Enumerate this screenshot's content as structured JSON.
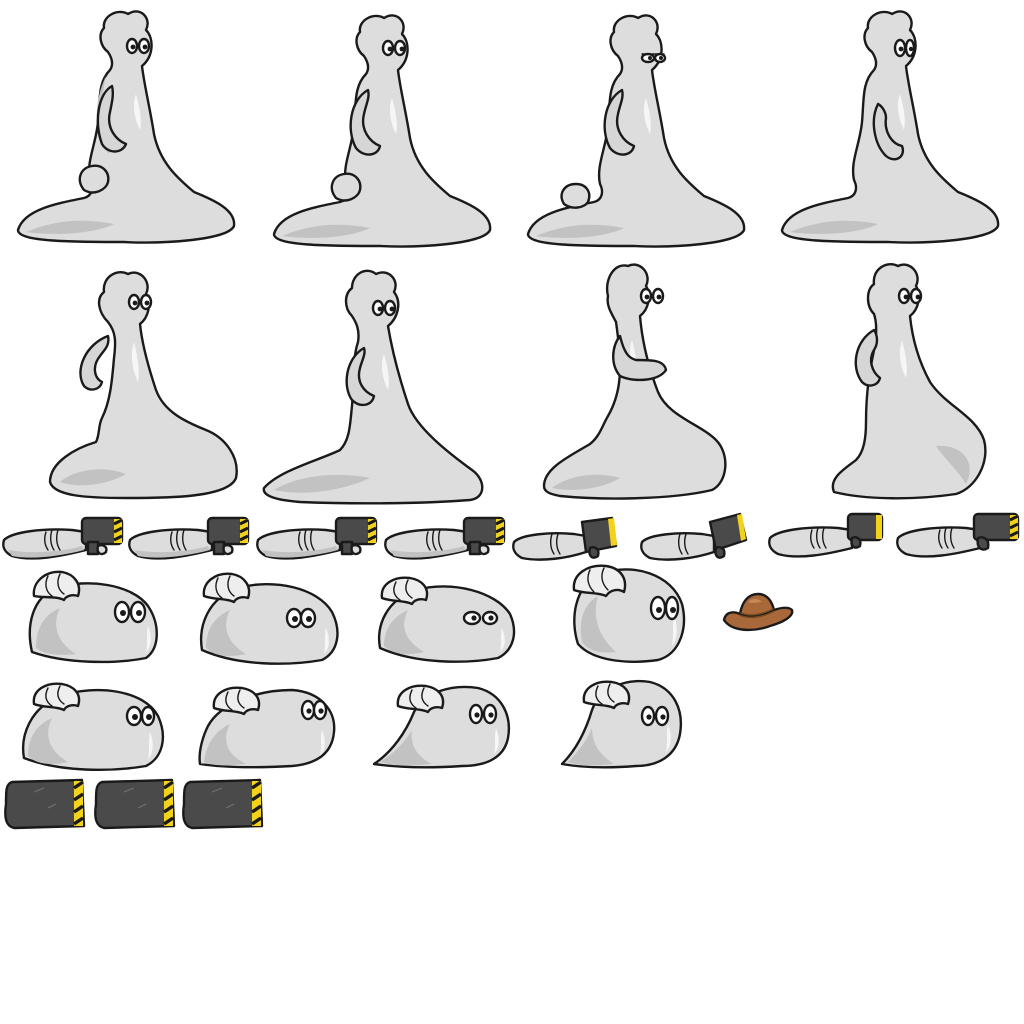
{
  "sheet": {
    "background": "#ffffff",
    "colors": {
      "slime_body": "#dddddd",
      "slime_shadow": "#c2c2c2",
      "slime_highlight": "#f6f6f6",
      "outline": "#1a1a1a",
      "device_body": "#4a4a4a",
      "hazard_yellow": "#f2d21b",
      "hat_brown": "#a8683a",
      "hat_band": "#7a4a1e"
    },
    "rows": [
      {
        "kind": "standing-slime",
        "frames": 4,
        "icon": "standing-slime-icon"
      },
      {
        "kind": "standing-slime",
        "frames": 4,
        "icon": "standing-slime-icon"
      },
      {
        "kind": "arm-cannon",
        "frames": 8,
        "icon": "arm-cannon-icon"
      },
      {
        "kind": "blob-slime",
        "frames": 4,
        "icon": "blob-slime-icon",
        "extra": "cowboy-hat-icon"
      },
      {
        "kind": "blob-slime-lean",
        "frames": 4,
        "icon": "blob-slime-icon"
      },
      {
        "kind": "cannon-barrel",
        "frames": 3,
        "icon": "cannon-barrel-icon"
      }
    ]
  }
}
